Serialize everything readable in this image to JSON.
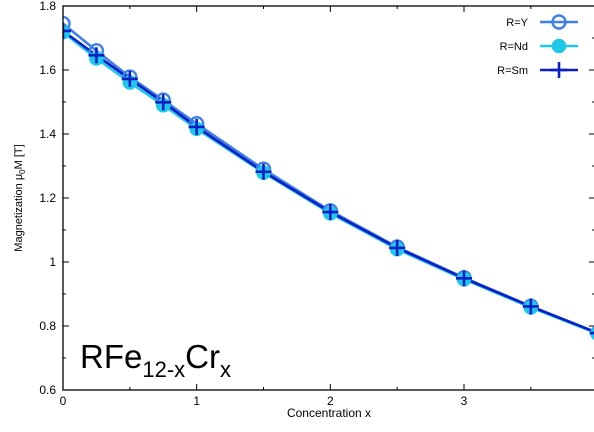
{
  "chart_data": {
    "type": "line",
    "title": "",
    "xlabel": "Concentration x",
    "ylabel_parts": [
      "Magnetization μ",
      "0",
      "M [T]"
    ],
    "annotation_parts": [
      "RFe",
      "12-x",
      "Cr",
      "x"
    ],
    "xlim": [
      0,
      3.98
    ],
    "ylim": [
      0.6,
      1.8
    ],
    "x_ticks": [
      0,
      1,
      2,
      3
    ],
    "y_ticks": [
      0.6,
      0.8,
      1,
      1.2,
      1.4,
      1.6,
      1.8
    ],
    "y_tick_labels": [
      "0.6",
      "0.8",
      "1",
      "1.2",
      "1.4",
      "1.6",
      "1.8"
    ],
    "grid": false,
    "legend_position": "top-right",
    "x": [
      0,
      0.25,
      0.5,
      0.75,
      1.0,
      1.5,
      2.0,
      2.5,
      3.0,
      3.5,
      4.0
    ],
    "series": [
      {
        "name": "R=Y",
        "marker": "open-circle",
        "color": "#3f7fe8",
        "values": [
          1.745,
          1.66,
          1.578,
          1.506,
          1.432,
          1.29,
          1.16,
          1.047,
          0.951,
          0.862,
          0.778
        ]
      },
      {
        "name": "R=Nd",
        "marker": "filled-circle",
        "color": "#1ec8ea",
        "values": [
          1.718,
          1.636,
          1.561,
          1.49,
          1.416,
          1.279,
          1.152,
          1.04,
          0.946,
          0.858,
          0.776
        ]
      },
      {
        "name": "R=Sm",
        "marker": "plus",
        "color": "#0a1ec8",
        "values": [
          1.722,
          1.646,
          1.572,
          1.499,
          1.422,
          1.282,
          1.156,
          1.044,
          0.949,
          0.861,
          0.778
        ]
      }
    ]
  }
}
